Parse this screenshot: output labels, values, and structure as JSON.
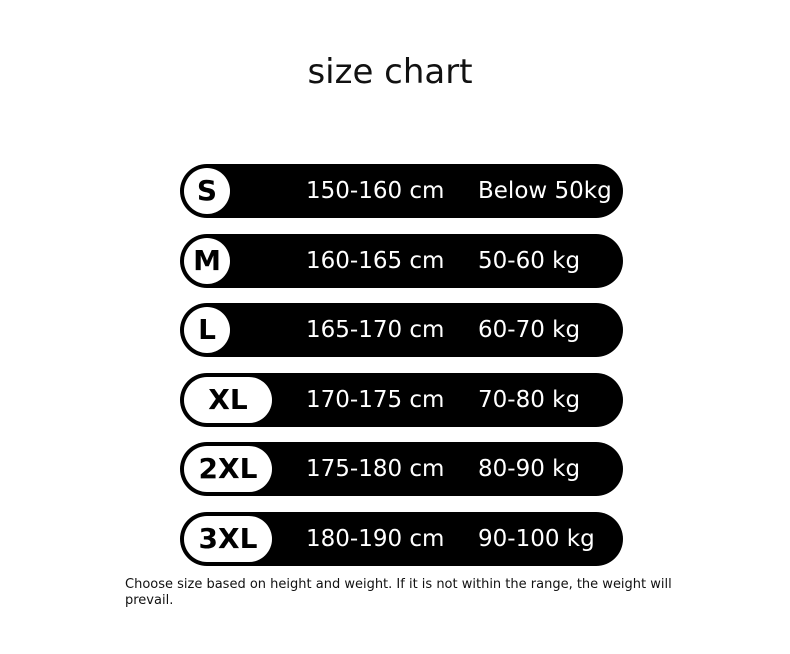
{
  "title": "size chart",
  "rows": [
    [
      "S",
      "150-160 cm",
      "Below 50kg"
    ],
    [
      "M",
      "160-165 cm",
      "50-60 kg"
    ],
    [
      "L",
      "165-170 cm",
      "60-70 kg"
    ],
    [
      "XL",
      "170-175 cm",
      "70-80 kg"
    ],
    [
      "2XL",
      "175-180 cm",
      "80-90 kg"
    ],
    [
      "3XL",
      "180-190 cm",
      "90-100 kg"
    ]
  ],
  "note": "Choose size based on height and weight. If it is not within the range, the weight will prevail."
}
